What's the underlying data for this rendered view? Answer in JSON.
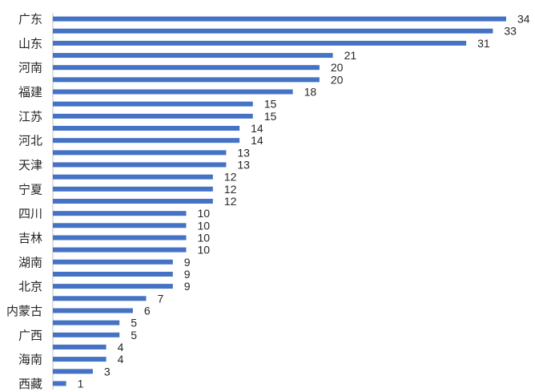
{
  "chart_data": {
    "type": "bar",
    "orientation": "horizontal",
    "categories": [
      "广东",
      "",
      "山东",
      "",
      "河南",
      "",
      "福建",
      "",
      "江苏",
      "",
      "河北",
      "",
      "天津",
      "",
      "宁夏",
      "",
      "四川",
      "",
      "吉林",
      "",
      "湖南",
      "",
      "北京",
      "",
      "内蒙古",
      "",
      "广西",
      "",
      "海南",
      "",
      "西藏"
    ],
    "values": [
      34,
      33,
      31,
      21,
      20,
      20,
      18,
      15,
      15,
      14,
      14,
      13,
      13,
      12,
      12,
      12,
      10,
      10,
      10,
      10,
      9,
      9,
      9,
      7,
      6,
      5,
      5,
      4,
      4,
      3,
      1
    ],
    "data_labels": true,
    "xlim": [
      0,
      34
    ],
    "grid": false,
    "colors": {
      "bar": "#4472C4",
      "text": "#262626",
      "axis": "#bfbfbf"
    }
  }
}
